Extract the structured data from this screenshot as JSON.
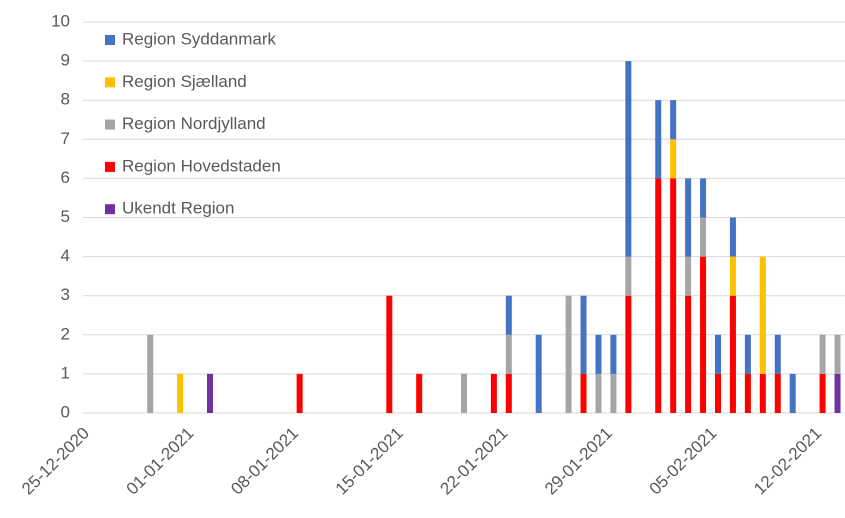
{
  "chart_data": {
    "type": "bar",
    "stacked": true,
    "categories": [
      "25-12-2020",
      null,
      null,
      null,
      null,
      null,
      null,
      "01-01-2021",
      null,
      null,
      null,
      null,
      null,
      null,
      "08-01-2021",
      null,
      null,
      null,
      null,
      null,
      null,
      "15-01-2021",
      null,
      null,
      null,
      null,
      null,
      null,
      "22-01-2021",
      null,
      null,
      null,
      null,
      null,
      null,
      "29-01-2021",
      null,
      null,
      null,
      null,
      null,
      null,
      "05-02-2021",
      null,
      null,
      null,
      null,
      null,
      null,
      "12-02-2021",
      null
    ],
    "series": [
      {
        "name": "Ukendt Region",
        "color": "#7030a0",
        "values": [
          0,
          0,
          0,
          0,
          0,
          0,
          0,
          0,
          1,
          0,
          0,
          0,
          0,
          0,
          0,
          0,
          0,
          0,
          0,
          0,
          0,
          0,
          0,
          0,
          0,
          0,
          0,
          0,
          0,
          0,
          0,
          0,
          0,
          0,
          0,
          0,
          0,
          0,
          0,
          0,
          0,
          0,
          0,
          0,
          0,
          0,
          0,
          0,
          0,
          0,
          1
        ]
      },
      {
        "name": "Region Hovedstaden",
        "color": "#ff0000",
        "values": [
          0,
          0,
          0,
          0,
          0,
          0,
          0,
          0,
          0,
          0,
          0,
          0,
          0,
          0,
          1,
          0,
          0,
          0,
          0,
          0,
          3,
          0,
          1,
          0,
          0,
          0,
          0,
          1,
          1,
          0,
          0,
          0,
          0,
          1,
          0,
          0,
          3,
          0,
          6,
          6,
          3,
          4,
          1,
          3,
          1,
          1,
          1,
          0,
          0,
          1,
          0
        ]
      },
      {
        "name": "Region Nordjylland",
        "color": "#a5a5a5",
        "values": [
          0,
          0,
          0,
          0,
          2,
          0,
          0,
          0,
          0,
          0,
          0,
          0,
          0,
          0,
          0,
          0,
          0,
          0,
          0,
          0,
          0,
          0,
          0,
          0,
          0,
          1,
          0,
          0,
          1,
          0,
          0,
          0,
          3,
          0,
          1,
          1,
          1,
          0,
          0,
          0,
          1,
          1,
          0,
          0,
          0,
          0,
          0,
          0,
          0,
          1,
          1
        ]
      },
      {
        "name": "Region Sjælland",
        "color": "#ffc000",
        "values": [
          0,
          0,
          0,
          0,
          0,
          0,
          1,
          0,
          0,
          0,
          0,
          0,
          0,
          0,
          0,
          0,
          0,
          0,
          0,
          0,
          0,
          0,
          0,
          0,
          0,
          0,
          0,
          0,
          0,
          0,
          0,
          0,
          0,
          0,
          0,
          0,
          0,
          0,
          0,
          1,
          0,
          0,
          0,
          1,
          0,
          3,
          0,
          0,
          0,
          0,
          0
        ]
      },
      {
        "name": "Region Syddanmark",
        "color": "#4472c4",
        "values": [
          0,
          0,
          0,
          0,
          0,
          0,
          0,
          0,
          0,
          0,
          0,
          0,
          0,
          0,
          0,
          0,
          0,
          0,
          0,
          0,
          0,
          0,
          0,
          0,
          0,
          0,
          0,
          0,
          1,
          0,
          2,
          0,
          0,
          2,
          1,
          1,
          5,
          0,
          2,
          1,
          2,
          1,
          1,
          1,
          1,
          0,
          1,
          1,
          0,
          0,
          0
        ]
      }
    ],
    "ylim": [
      0,
      10
    ],
    "yticks": [
      0,
      1,
      2,
      3,
      4,
      5,
      6,
      7,
      8,
      9,
      10
    ],
    "grid": true,
    "legend": "top-left"
  }
}
